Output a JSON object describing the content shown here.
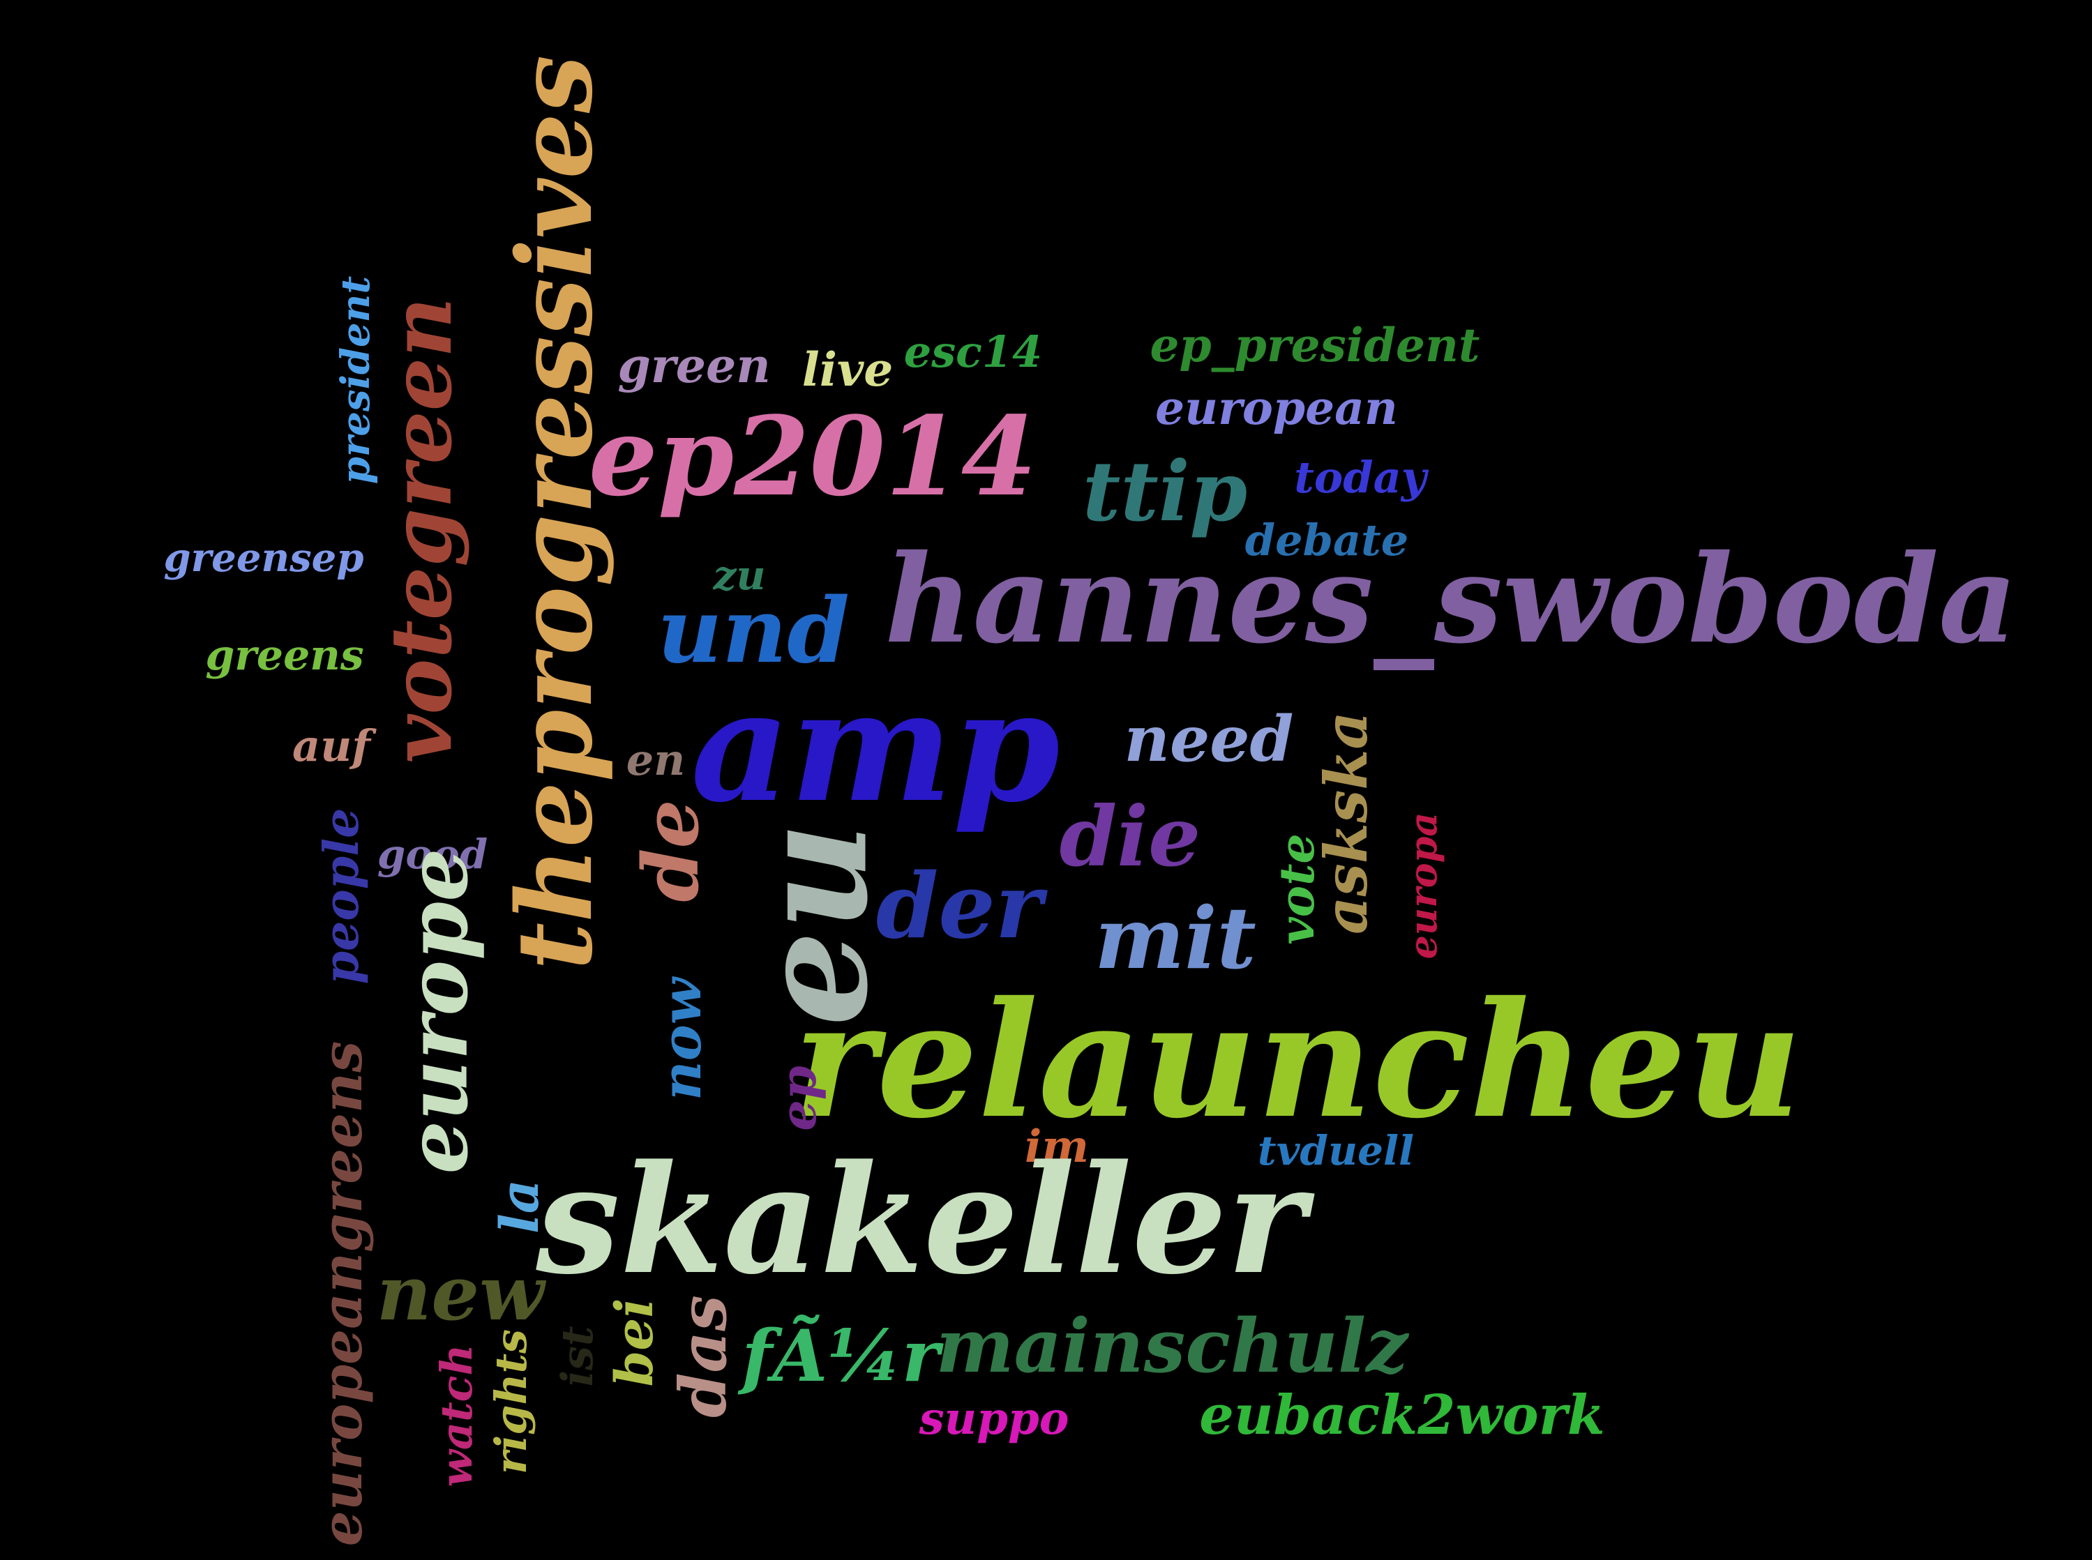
{
  "words": [
    {
      "text": "theprogressives",
      "color": "#d8a455",
      "rotate": -90
    },
    {
      "text": "votegreen",
      "color": "#a04535",
      "rotate": -90
    },
    {
      "text": "president",
      "color": "#4da0e8",
      "rotate": -90
    },
    {
      "text": "green",
      "color": "#a888b8",
      "rotate": 0
    },
    {
      "text": "live",
      "color": "#d8e090",
      "rotate": 0
    },
    {
      "text": "esc14",
      "color": "#2ea040",
      "rotate": 0
    },
    {
      "text": "ep_president",
      "color": "#2e8a2e",
      "rotate": 0
    },
    {
      "text": "european",
      "color": "#8080e0",
      "rotate": 0
    },
    {
      "text": "ep2014",
      "color": "#d870a8",
      "rotate": 0
    },
    {
      "text": "ttip",
      "color": "#307878",
      "rotate": 0
    },
    {
      "text": "today",
      "color": "#3838d8",
      "rotate": 0
    },
    {
      "text": "greensep",
      "color": "#8098e8",
      "rotate": 0
    },
    {
      "text": "debate",
      "color": "#2870b0",
      "rotate": 0
    },
    {
      "text": "zu",
      "color": "#308060",
      "rotate": 0
    },
    {
      "text": "hannes_swoboda",
      "color": "#8060a0",
      "rotate": 0
    },
    {
      "text": "und",
      "color": "#2068c8",
      "rotate": 0
    },
    {
      "text": "greens",
      "color": "#78c040",
      "rotate": 0
    },
    {
      "text": "amp",
      "color": "#2818c8",
      "rotate": 0
    },
    {
      "text": "need",
      "color": "#90a0d8",
      "rotate": 0
    },
    {
      "text": "auf",
      "color": "#c08878",
      "rotate": 0
    },
    {
      "text": "en",
      "color": "#907870",
      "rotate": 0
    },
    {
      "text": "askska",
      "color": "#a89050",
      "rotate": -90
    },
    {
      "text": "people",
      "color": "#3838a8",
      "rotate": -90
    },
    {
      "text": "good",
      "color": "#8070b0",
      "rotate": 0
    },
    {
      "text": "de",
      "color": "#c07868",
      "rotate": -90
    },
    {
      "text": "eu",
      "color": "#a8b8b0",
      "rotate": -90
    },
    {
      "text": "die",
      "color": "#7038a0",
      "rotate": 0
    },
    {
      "text": "vote",
      "color": "#48c048",
      "rotate": -90
    },
    {
      "text": "europa",
      "color": "#c01848",
      "rotate": -90
    },
    {
      "text": "europe",
      "color": "#c8e0c0",
      "rotate": -90
    },
    {
      "text": "der",
      "color": "#2838a8",
      "rotate": 0
    },
    {
      "text": "mit",
      "color": "#7090d0",
      "rotate": 0
    },
    {
      "text": "now",
      "color": "#3080c8",
      "rotate": -90
    },
    {
      "text": "relauncheu",
      "color": "#98c828",
      "rotate": 0
    },
    {
      "text": "europeangreens",
      "color": "#784840",
      "rotate": -90
    },
    {
      "text": "ep",
      "color": "#702888",
      "rotate": -90
    },
    {
      "text": "im",
      "color": "#d06838",
      "rotate": 0
    },
    {
      "text": "tvduell",
      "color": "#2878c0",
      "rotate": 0
    },
    {
      "text": "la",
      "color": "#58a8e0",
      "rotate": -90
    },
    {
      "text": "skakeller",
      "color": "#c8e0c0",
      "rotate": 0
    },
    {
      "text": "new",
      "color": "#505828",
      "rotate": 0
    },
    {
      "text": "ist",
      "color": "#282818",
      "rotate": -90
    },
    {
      "text": "bei",
      "color": "#b0c048",
      "rotate": -90
    },
    {
      "text": "das",
      "color": "#b89088",
      "rotate": -90
    },
    {
      "text": "fÃ¼r",
      "color": "#38b868",
      "rotate": 0
    },
    {
      "text": "mainschulz",
      "color": "#307848",
      "rotate": 0
    },
    {
      "text": "watch",
      "color": "#c02878",
      "rotate": -90
    },
    {
      "text": "rights",
      "color": "#b8b848",
      "rotate": -90
    },
    {
      "text": "suppo",
      "color": "#d818b8",
      "rotate": 0
    },
    {
      "text": "euback2work",
      "color": "#30b838",
      "rotate": 0
    }
  ]
}
